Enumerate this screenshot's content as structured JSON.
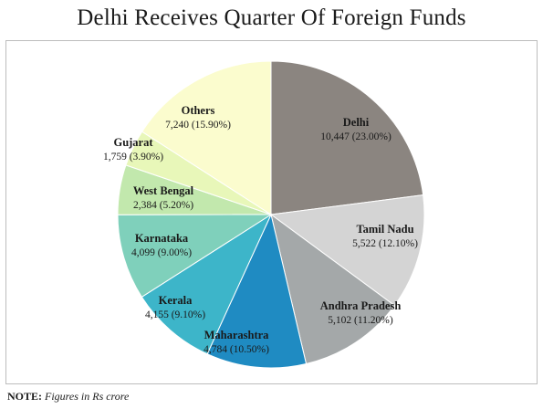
{
  "title": "Delhi Receives Quarter Of Foreign Funds",
  "note": {
    "label": "NOTE:",
    "text": "Figures in Rs crore"
  },
  "chart_data": {
    "type": "pie",
    "title": "Delhi Receives Quarter Of Foreign Funds",
    "legend": "none",
    "slices": [
      {
        "label": "Delhi",
        "value": 10447,
        "percent": "23.00%",
        "display": "10,447 (23.00%)",
        "color": "#8b8580"
      },
      {
        "label": "Tamil Nadu",
        "value": 5522,
        "percent": "12.10%",
        "display": "5,522 (12.10%)",
        "color": "#d4d4d4"
      },
      {
        "label": "Andhra Pradesh",
        "value": 5102,
        "percent": "11.20%",
        "display": "5,102 (11.20%)",
        "color": "#a4a8a9"
      },
      {
        "label": "Maharashtra",
        "value": 4784,
        "percent": "10.50%",
        "display": "4,784 (10.50%)",
        "color": "#1f8bc2"
      },
      {
        "label": "Kerala",
        "value": 4155,
        "percent": "9.10%",
        "display": "4,155 (9.10%)",
        "color": "#3db5c9"
      },
      {
        "label": "Karnataka",
        "value": 4099,
        "percent": "9.00%",
        "display": "4,099 (9.00%)",
        "color": "#7fd0bb"
      },
      {
        "label": "West Bengal",
        "value": 2384,
        "percent": "5.20%",
        "display": "2,384 (5.20%)",
        "color": "#c2e8ad"
      },
      {
        "label": "Gujarat",
        "value": 1759,
        "percent": "3.90%",
        "display": "1,759 (3.90%)",
        "color": "#e8f7b9"
      },
      {
        "label": "Others",
        "value": 7240,
        "percent": "15.90%",
        "display": "7,240 (15.90%)",
        "color": "#fbfcce"
      }
    ]
  }
}
